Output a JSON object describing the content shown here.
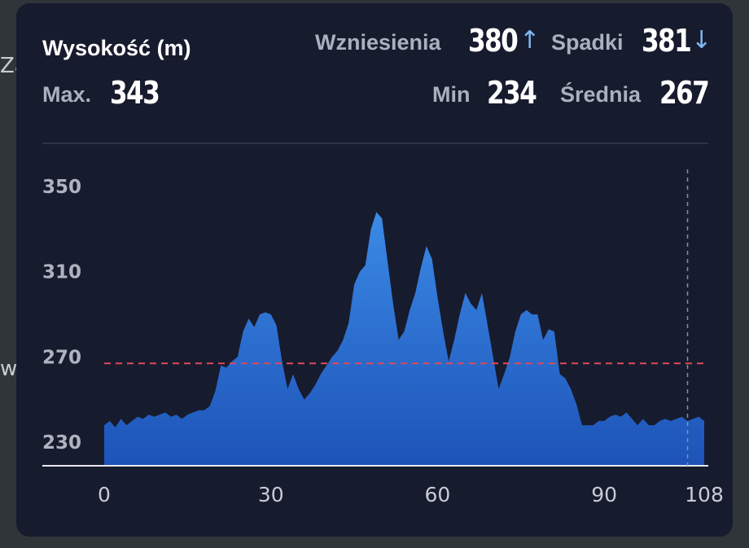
{
  "map": {
    "fragments": [
      "Za",
      "w"
    ]
  },
  "stats": {
    "title": "Wysokość (m)",
    "max_label": "Max.",
    "max_value": "343",
    "ascent_label": "Wzniesienia",
    "ascent_value": "380",
    "ascent_icon": "arrow-up-icon",
    "descent_label": "Spadki",
    "descent_value": "381",
    "descent_icon": "arrow-down-icon",
    "min_label": "Min",
    "min_value": "234",
    "avg_label": "Średnia",
    "avg_value": "267"
  },
  "colors": {
    "fill_top": "#3b8ae6",
    "fill_bottom": "#1d53b8",
    "average_line": "#e0485a",
    "card": "#171b2e"
  },
  "chart_data": {
    "type": "area",
    "title": "Wysokość (m)",
    "xlabel": "",
    "ylabel": "",
    "x_ticks": [
      0,
      30,
      60,
      90,
      108
    ],
    "y_ticks": [
      230,
      270,
      310,
      350
    ],
    "xlim": [
      0,
      108
    ],
    "ylim": [
      219,
      358
    ],
    "average_line": 267,
    "cursor_x": 105,
    "grid": false,
    "series": [
      {
        "x": [
          0,
          1,
          2,
          3,
          4,
          5,
          6,
          7,
          8,
          9,
          10,
          11,
          12,
          13,
          14,
          15,
          16,
          17,
          18,
          19,
          20,
          21,
          22,
          23,
          24,
          25,
          26,
          27,
          28,
          29,
          30,
          31,
          32,
          33,
          34,
          35,
          36,
          37,
          38,
          39,
          40,
          41,
          42,
          43,
          44,
          45,
          46,
          47,
          48,
          49,
          50,
          51,
          52,
          53,
          54,
          55,
          56,
          57,
          58,
          59,
          60,
          61,
          62,
          63,
          64,
          65,
          66,
          67,
          68,
          69,
          70,
          71,
          72,
          73,
          74,
          75,
          76,
          77,
          78,
          79,
          80,
          81,
          82,
          83,
          84,
          85,
          86,
          87,
          88,
          89,
          90,
          91,
          92,
          93,
          94,
          95,
          96,
          97,
          98,
          99,
          100,
          101,
          102,
          103,
          104,
          105,
          106,
          107,
          108
        ],
        "y": [
          238,
          240,
          237,
          241,
          238,
          240,
          242,
          241,
          243,
          242,
          243,
          244,
          242,
          243,
          241,
          243,
          244,
          245,
          245,
          247,
          254,
          266,
          265,
          268,
          270,
          282,
          288,
          284,
          290,
          291,
          290,
          285,
          268,
          255,
          262,
          255,
          250,
          253,
          257,
          262,
          266,
          270,
          273,
          278,
          286,
          304,
          310,
          313,
          330,
          338,
          335,
          315,
          295,
          278,
          282,
          292,
          300,
          312,
          322,
          316,
          298,
          282,
          268,
          278,
          290,
          300,
          295,
          292,
          300,
          285,
          270,
          255,
          262,
          270,
          282,
          290,
          292,
          290,
          290,
          278,
          283,
          282,
          262,
          260,
          255,
          248,
          238,
          238,
          238,
          240,
          240,
          242,
          243,
          242,
          244,
          241,
          238,
          241,
          238,
          238,
          240,
          241,
          240,
          241,
          242,
          240,
          241,
          242,
          240
        ]
      }
    ]
  }
}
